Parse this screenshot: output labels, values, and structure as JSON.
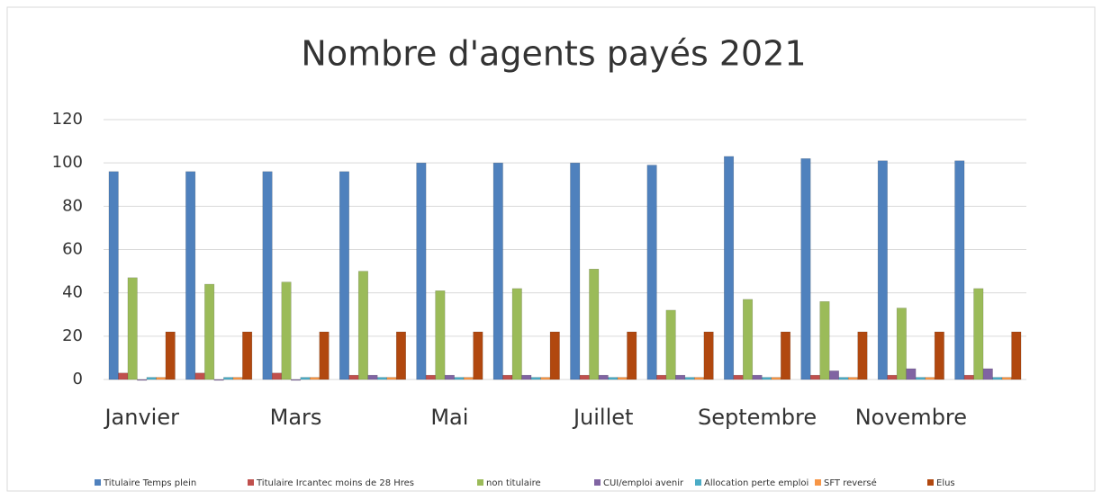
{
  "chart_data": {
    "type": "bar",
    "title": "Nombre d'agents payés 2021",
    "categories": [
      "Janvier",
      null,
      "Mars",
      null,
      "Mai",
      null,
      "Juillet",
      null,
      "Septembre",
      null,
      "Novembre",
      null
    ],
    "series": [
      {
        "name": "Titulaire Temps plein",
        "color": "#4f81bd",
        "values": [
          96,
          96,
          96,
          96,
          100,
          100,
          100,
          99,
          103,
          102,
          101,
          101
        ]
      },
      {
        "name": "Titulaire Ircantec  moins de 28 Hres",
        "color": "#c0504d",
        "values": [
          3,
          3,
          3,
          2,
          2,
          2,
          2,
          2,
          2,
          2,
          2,
          2
        ]
      },
      {
        "name": "non titulaire",
        "color": "#9bbb59",
        "values": [
          47,
          44,
          45,
          50,
          41,
          42,
          51,
          32,
          37,
          36,
          33,
          42
        ]
      },
      {
        "name": "CUI/emploi avenir",
        "color": "#8064a2",
        "values": [
          0,
          0,
          0,
          2,
          2,
          2,
          2,
          2,
          2,
          4,
          5,
          5
        ]
      },
      {
        "name": "Allocation perte emploi",
        "color": "#4bacc6",
        "values": [
          1,
          1,
          1,
          1,
          1,
          1,
          1,
          1,
          1,
          1,
          1,
          1
        ]
      },
      {
        "name": "SFT reversé",
        "color": "#f79646",
        "values": [
          1,
          1,
          1,
          1,
          1,
          1,
          1,
          1,
          1,
          1,
          1,
          1
        ]
      },
      {
        "name": "Elus",
        "color": "#b1480f",
        "values": [
          22,
          22,
          22,
          22,
          22,
          22,
          22,
          22,
          22,
          22,
          22,
          22
        ]
      }
    ],
    "ylim": [
      0,
      120
    ],
    "yticks": [
      0,
      20,
      40,
      60,
      80,
      100,
      120
    ],
    "grid": true,
    "legend": "bottom"
  }
}
